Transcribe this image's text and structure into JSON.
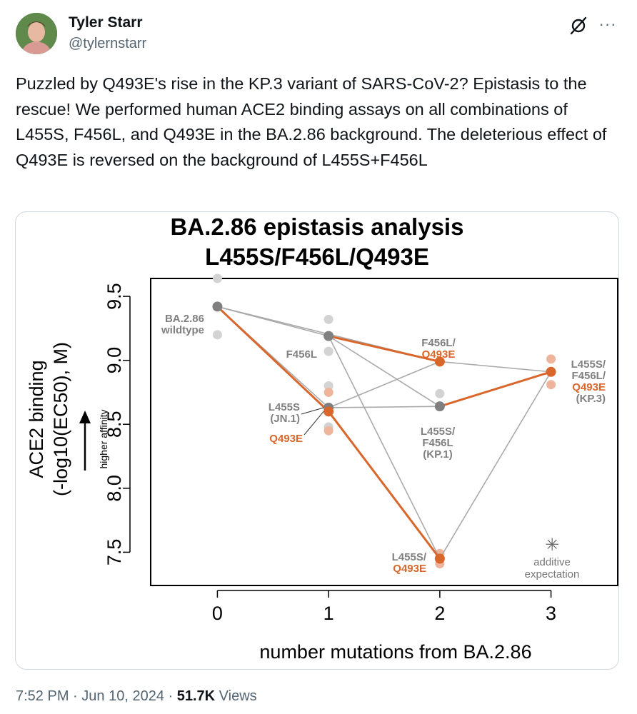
{
  "author": {
    "name": "Tyler Starr",
    "handle": "@tylernstarr"
  },
  "tweet": {
    "text": "Puzzled by Q493E's rise in the KP.3 variant of SARS-CoV-2? Epistasis to the rescue! We performed human ACE2 binding assays on all combinations of L455S, F456L, and Q493E in the BA.2.86 background. The deleterious effect of Q493E is reversed on the background of L455S+F456L"
  },
  "footer": {
    "time": "7:52 PM",
    "sep1": "·",
    "date": "Jun 10, 2024",
    "sep2": "·",
    "views_count": "51.7K",
    "views_label": "Views"
  },
  "colors": {
    "orange": "#d9662b",
    "gray_point": "#808080",
    "gray_line": "#aaaaaa",
    "light_gray": "#d3d3d3",
    "light_orange": "#efb49c"
  },
  "chart_data": {
    "type": "line",
    "title": [
      "BA.2.86 epistasis analysis",
      "L455S/F456L/Q493E"
    ],
    "xlabel": "number mutations from BA.2.86",
    "ylabel": [
      "ACE2 binding",
      "(-log10(EC50), M)"
    ],
    "arrow_label": "higher affinity",
    "xlim": [
      -0.6,
      3.6
    ],
    "ylim": [
      7.24,
      9.64
    ],
    "xticks": [
      0,
      1,
      2,
      3
    ],
    "yticks": [
      7.5,
      8.0,
      8.5,
      9.0,
      9.5
    ],
    "yticklabels": [
      "7.5",
      "8.0",
      "8.5",
      "9.0",
      "9.5"
    ],
    "genotypes": [
      {
        "id": "wt",
        "x": 0,
        "y": 9.42,
        "color": "gray",
        "reps": [
          9.64,
          9.2
        ],
        "label": [
          "BA.2.86",
          "wildtype"
        ],
        "label_colors": [
          "gray",
          "gray"
        ]
      },
      {
        "id": "f456l",
        "x": 1,
        "y": 9.19,
        "color": "gray",
        "reps": [
          9.32,
          9.07
        ],
        "label": [
          "F456L"
        ],
        "label_colors": [
          "gray"
        ]
      },
      {
        "id": "l455s",
        "x": 1,
        "y": 8.63,
        "color": "gray",
        "reps": [
          8.8,
          8.48
        ],
        "label": [
          "L455S",
          "(JN.1)"
        ],
        "label_colors": [
          "gray",
          "gray"
        ]
      },
      {
        "id": "q493e",
        "x": 1,
        "y": 8.6,
        "color": "orange",
        "reps": [
          8.75,
          8.45
        ],
        "label": [
          "Q493E"
        ],
        "label_colors": [
          "orange"
        ]
      },
      {
        "id": "f456l_q493e",
        "x": 2,
        "y": 8.99,
        "color": "orange",
        "reps": [],
        "label": [
          "F456L/",
          "Q493E"
        ],
        "label_colors": [
          "gray",
          "orange"
        ]
      },
      {
        "id": "l455s_f456l",
        "x": 2,
        "y": 8.64,
        "color": "gray",
        "reps": [
          8.74
        ],
        "label": [
          "L455S/",
          "F456L",
          "(KP.1)"
        ],
        "label_colors": [
          "gray",
          "gray",
          "gray"
        ]
      },
      {
        "id": "l455s_q493e",
        "x": 2,
        "y": 7.45,
        "color": "orange",
        "reps": [
          7.49,
          7.41
        ],
        "label": [
          "L455S/",
          "Q493E"
        ],
        "label_colors": [
          "gray",
          "orange"
        ]
      },
      {
        "id": "triple",
        "x": 3,
        "y": 8.91,
        "color": "orange",
        "reps": [
          9.01,
          8.81
        ],
        "label": [
          "L455S/",
          "F456L/",
          "Q493E",
          "(KP.3)"
        ],
        "label_colors": [
          "gray",
          "gray",
          "orange",
          "gray"
        ]
      }
    ],
    "gray_edges": [
      [
        "wt",
        "f456l"
      ],
      [
        "wt",
        "l455s"
      ],
      [
        "wt",
        "f456l_q493e"
      ],
      [
        "f456l",
        "l455s_f456l"
      ],
      [
        "f456l",
        "l455s_q493e"
      ],
      [
        "l455s",
        "l455s_f456l"
      ],
      [
        "l455s",
        "f456l_q493e"
      ],
      [
        "f456l_q493e",
        "triple"
      ],
      [
        "l455s_q493e",
        "triple"
      ]
    ],
    "orange_edges": [
      [
        "wt",
        "q493e"
      ],
      [
        "q493e",
        "l455s_q493e"
      ],
      [
        "f456l",
        "f456l_q493e"
      ],
      [
        "l455s_f456l",
        "triple"
      ]
    ],
    "legend": {
      "symbol": "✳",
      "label": [
        "additive",
        "expectation"
      ]
    }
  }
}
